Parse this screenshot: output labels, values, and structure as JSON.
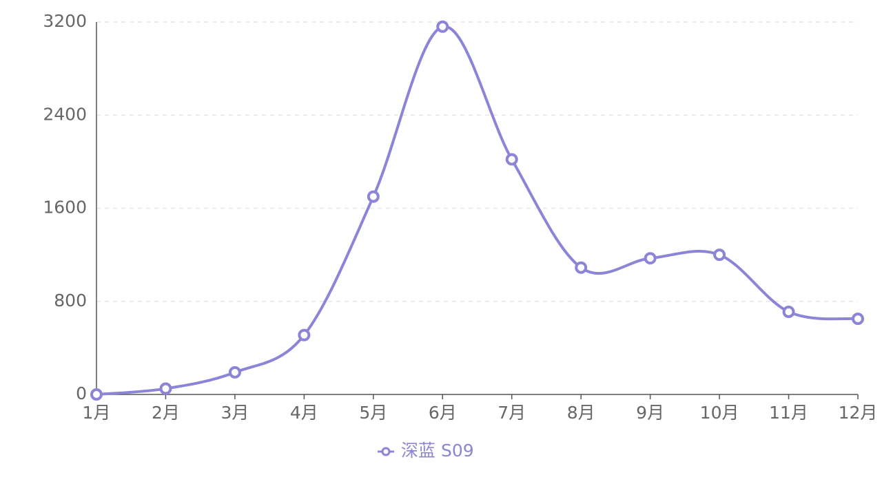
{
  "chart_data": {
    "type": "line",
    "categories": [
      "1月",
      "2月",
      "3月",
      "4月",
      "5月",
      "6月",
      "7月",
      "8月",
      "9月",
      "10月",
      "11月",
      "12月"
    ],
    "series": [
      {
        "name": "深蓝 S09",
        "color": "#8b84d7",
        "values": [
          0,
          50,
          190,
          510,
          1700,
          3160,
          2020,
          1090,
          1170,
          1200,
          710,
          650
        ]
      }
    ],
    "ylim": [
      0,
      3200
    ],
    "yticks": [
      0,
      800,
      1600,
      2400,
      3200
    ],
    "grid": true,
    "smooth": true,
    "legend": "bottom"
  }
}
